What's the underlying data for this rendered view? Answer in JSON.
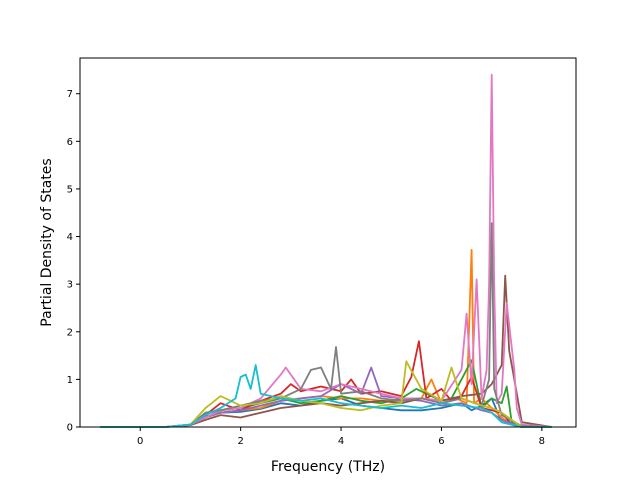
{
  "chart_data": {
    "type": "line",
    "xlabel": "Frequency (THz)",
    "ylabel": "Partial Density of States",
    "xlim": [
      -1.2,
      8.68
    ],
    "ylim": [
      0,
      7.75
    ],
    "xticks": [
      0,
      2,
      4,
      6,
      8
    ],
    "yticks": [
      0,
      1,
      2,
      3,
      4,
      5,
      6,
      7
    ],
    "grid": false,
    "series": [
      {
        "color": "#1f77b4",
        "x": [
          -0.8,
          0.5,
          1.0,
          1.3,
          1.6,
          2.0,
          2.4,
          2.8,
          3.2,
          3.6,
          4.0,
          4.4,
          4.8,
          5.2,
          5.6,
          6.0,
          6.4,
          6.6,
          6.8,
          7.0,
          7.2,
          7.4,
          7.6,
          8.2
        ],
        "y": [
          0,
          0,
          0.05,
          0.22,
          0.3,
          0.32,
          0.38,
          0.5,
          0.45,
          0.55,
          0.6,
          0.45,
          0.4,
          0.35,
          0.35,
          0.4,
          0.5,
          0.35,
          0.45,
          0.6,
          0.1,
          0.05,
          0,
          0
        ]
      },
      {
        "color": "#ff7f0e",
        "x": [
          -0.8,
          0.5,
          1.0,
          1.3,
          1.6,
          2.0,
          2.4,
          2.8,
          3.2,
          3.6,
          4.0,
          4.4,
          4.8,
          5.2,
          5.6,
          5.8,
          6.0,
          6.3,
          6.5,
          6.6,
          6.65,
          6.8,
          7.0,
          7.2,
          7.4,
          7.6,
          8.2
        ],
        "y": [
          0,
          0,
          0.04,
          0.2,
          0.3,
          0.35,
          0.4,
          0.55,
          0.6,
          0.65,
          0.6,
          0.6,
          0.55,
          0.55,
          0.6,
          1.0,
          0.5,
          0.6,
          0.5,
          3.72,
          0.5,
          0.6,
          0.4,
          0.2,
          0.05,
          0,
          0
        ]
      },
      {
        "color": "#2ca02c",
        "x": [
          -0.8,
          0.5,
          1.0,
          1.3,
          1.6,
          2.0,
          2.4,
          2.8,
          3.2,
          3.6,
          4.0,
          4.4,
          4.8,
          5.2,
          5.5,
          5.8,
          6.0,
          6.2,
          6.4,
          6.6,
          6.8,
          7.0,
          7.2,
          7.3,
          7.4,
          7.6,
          8.2
        ],
        "y": [
          0,
          0,
          0.05,
          0.28,
          0.35,
          0.4,
          0.5,
          0.6,
          0.5,
          0.55,
          0.65,
          0.55,
          0.5,
          0.6,
          0.8,
          0.65,
          0.55,
          0.6,
          1.0,
          1.4,
          0.4,
          0.6,
          0.5,
          0.85,
          0.1,
          0,
          0
        ]
      },
      {
        "color": "#d62728",
        "x": [
          -0.8,
          0.5,
          1.0,
          1.3,
          1.6,
          2.0,
          2.4,
          2.8,
          3.0,
          3.2,
          3.6,
          4.0,
          4.2,
          4.4,
          4.8,
          5.2,
          5.4,
          5.55,
          5.7,
          6.0,
          6.2,
          6.4,
          6.6,
          6.8,
          7.0,
          7.2,
          7.4,
          7.6,
          8.2
        ],
        "y": [
          0,
          0,
          0.05,
          0.25,
          0.5,
          0.35,
          0.55,
          0.7,
          0.9,
          0.75,
          0.85,
          0.75,
          1.0,
          0.7,
          0.75,
          0.65,
          1.05,
          1.8,
          0.6,
          0.8,
          0.55,
          0.65,
          1.05,
          0.4,
          0.35,
          0.3,
          0.05,
          0,
          0
        ]
      },
      {
        "color": "#9467bd",
        "x": [
          -0.8,
          0.5,
          1.0,
          1.3,
          1.6,
          2.0,
          2.4,
          2.8,
          3.2,
          3.6,
          4.0,
          4.4,
          4.6,
          4.8,
          5.2,
          5.6,
          6.0,
          6.4,
          6.8,
          7.0,
          7.2,
          7.6,
          8.2
        ],
        "y": [
          0,
          0,
          0.05,
          0.2,
          0.3,
          0.35,
          0.45,
          0.55,
          0.6,
          0.65,
          0.9,
          0.7,
          1.25,
          0.65,
          0.6,
          0.55,
          0.45,
          0.5,
          0.35,
          0.3,
          0.15,
          0,
          0
        ]
      },
      {
        "color": "#8c564b",
        "x": [
          -0.8,
          0.5,
          1.0,
          1.3,
          1.6,
          2.0,
          2.4,
          2.8,
          3.2,
          3.6,
          4.0,
          4.4,
          4.8,
          5.2,
          5.6,
          6.0,
          6.4,
          6.8,
          7.0,
          7.2,
          7.27,
          7.35,
          7.45,
          7.6,
          8.2
        ],
        "y": [
          0,
          0,
          0.04,
          0.15,
          0.25,
          0.2,
          0.3,
          0.4,
          0.45,
          0.5,
          0.45,
          0.5,
          0.55,
          0.5,
          0.6,
          0.55,
          0.65,
          0.7,
          0.9,
          1.3,
          3.18,
          1.6,
          1.0,
          0.1,
          0
        ]
      },
      {
        "color": "#e377c2",
        "x": [
          -0.8,
          0.5,
          1.0,
          1.3,
          1.6,
          2.0,
          2.4,
          2.8,
          2.9,
          3.2,
          3.6,
          4.0,
          4.4,
          4.8,
          5.2,
          5.6,
          6.0,
          6.4,
          6.5,
          6.6,
          6.7,
          6.8,
          6.9,
          6.95,
          7.0,
          7.05,
          7.1,
          7.2,
          7.3,
          7.45,
          7.5,
          7.6,
          8.2
        ],
        "y": [
          0,
          0,
          0.05,
          0.2,
          0.35,
          0.4,
          0.6,
          1.1,
          1.25,
          0.8,
          0.75,
          0.9,
          0.8,
          0.7,
          0.6,
          0.6,
          0.55,
          1.2,
          2.38,
          0.9,
          3.1,
          0.6,
          1.2,
          3.0,
          7.4,
          3.0,
          0.5,
          0.7,
          2.6,
          1.2,
          0.4,
          0.05,
          0
        ]
      },
      {
        "color": "#7f7f7f",
        "x": [
          -0.8,
          0.5,
          1.0,
          1.3,
          1.6,
          2.0,
          2.4,
          2.8,
          3.2,
          3.4,
          3.6,
          3.8,
          3.9,
          4.0,
          4.4,
          4.8,
          5.2,
          5.6,
          6.0,
          6.4,
          6.8,
          6.95,
          7.0,
          7.05,
          7.2,
          7.6,
          8.2
        ],
        "y": [
          0,
          0,
          0.05,
          0.3,
          0.35,
          0.45,
          0.55,
          0.6,
          0.8,
          1.2,
          1.25,
          0.8,
          1.68,
          0.7,
          0.75,
          0.6,
          0.55,
          0.6,
          0.5,
          0.6,
          0.45,
          1.0,
          4.28,
          0.8,
          0.25,
          0.02,
          0
        ]
      },
      {
        "color": "#bcbd22",
        "x": [
          -0.8,
          0.5,
          1.0,
          1.3,
          1.6,
          2.0,
          2.4,
          2.8,
          3.2,
          3.6,
          4.0,
          4.4,
          4.8,
          5.2,
          5.3,
          5.6,
          6.0,
          6.2,
          6.4,
          6.8,
          7.0,
          7.2,
          7.6,
          8.2
        ],
        "y": [
          0,
          0,
          0.05,
          0.4,
          0.65,
          0.45,
          0.5,
          0.65,
          0.55,
          0.5,
          0.4,
          0.35,
          0.45,
          0.5,
          1.38,
          0.8,
          0.55,
          1.25,
          0.6,
          0.45,
          0.4,
          0.3,
          0,
          0
        ]
      },
      {
        "color": "#17becf",
        "x": [
          -0.8,
          0.5,
          1.0,
          1.3,
          1.6,
          1.9,
          2.0,
          2.1,
          2.2,
          2.3,
          2.4,
          2.8,
          3.2,
          3.6,
          4.0,
          4.4,
          4.8,
          5.2,
          5.6,
          6.0,
          6.4,
          6.8,
          7.0,
          7.2,
          7.6,
          8.2
        ],
        "y": [
          0,
          0,
          0.05,
          0.25,
          0.4,
          0.6,
          1.05,
          1.1,
          0.8,
          1.3,
          0.7,
          0.6,
          0.55,
          0.6,
          0.5,
          0.45,
          0.4,
          0.45,
          0.4,
          0.5,
          0.45,
          0.4,
          0.3,
          0.1,
          0,
          0
        ]
      }
    ]
  }
}
